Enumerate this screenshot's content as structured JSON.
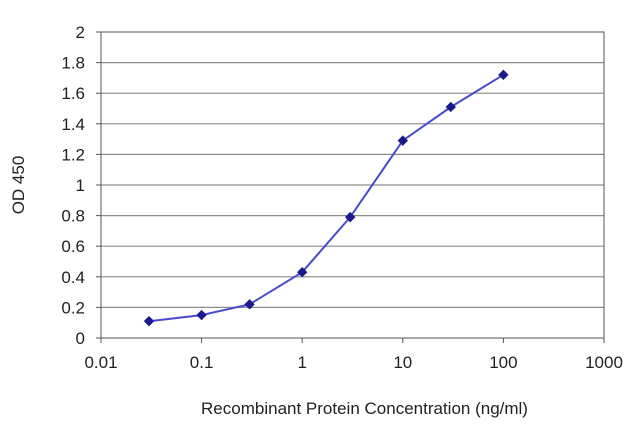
{
  "chart_data": {
    "type": "line",
    "xlabel": "Recombinant Protein Concentration (ng/ml)",
    "ylabel": "OD 450",
    "x_scale": "log",
    "xlim": [
      0.01,
      1000
    ],
    "ylim": [
      0,
      2
    ],
    "x_ticks": [
      "0.01",
      "0.1",
      "1",
      "10",
      "100",
      "1000"
    ],
    "y_ticks": [
      "0",
      "0.2",
      "0.4",
      "0.6",
      "0.8",
      "1",
      "1.2",
      "1.4",
      "1.6",
      "1.8",
      "2"
    ],
    "grid": "horizontal",
    "series": [
      {
        "x": [
          0.03,
          0.1,
          0.3,
          1,
          3,
          10,
          30,
          100
        ],
        "y": [
          0.11,
          0.15,
          0.22,
          0.43,
          0.79,
          1.29,
          1.51,
          1.72
        ],
        "color": "#1a1a8c"
      }
    ]
  }
}
